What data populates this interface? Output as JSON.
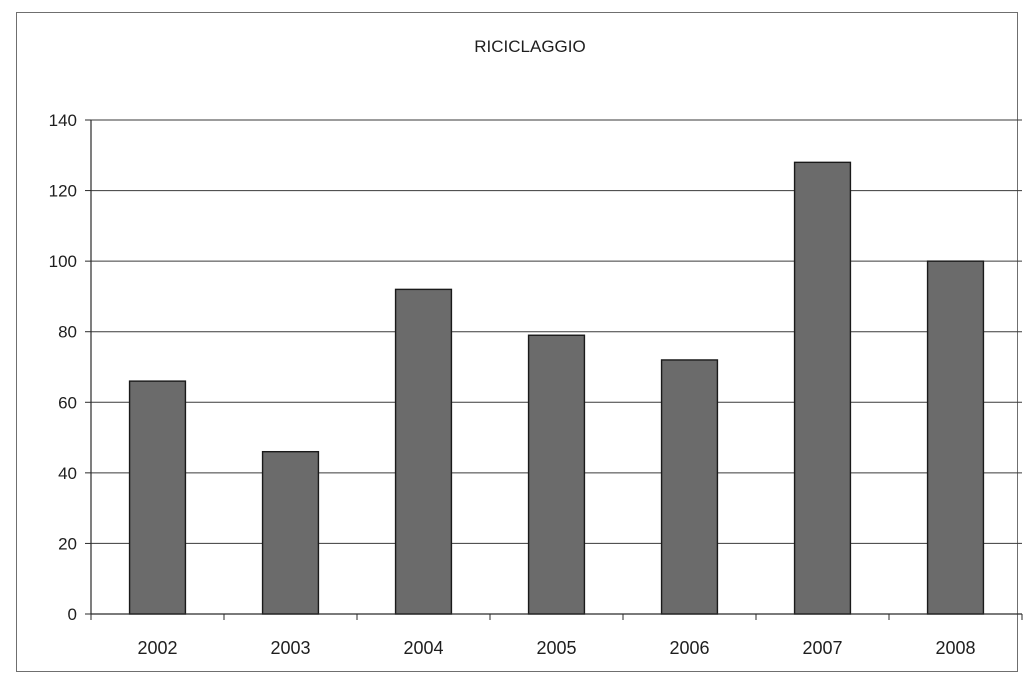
{
  "chart_data": {
    "type": "bar",
    "title": "RICICLAGGIO",
    "xlabel": "",
    "ylabel": "",
    "categories": [
      "2002",
      "2003",
      "2004",
      "2005",
      "2006",
      "2007",
      "2008"
    ],
    "values": [
      66,
      46,
      92,
      79,
      72,
      128,
      100
    ],
    "ylim": [
      0,
      140
    ],
    "yticks": [
      0,
      20,
      40,
      60,
      80,
      100,
      120,
      140
    ],
    "ytick_labels": [
      "0",
      "20",
      "40",
      "60",
      "80",
      "100",
      "120",
      "140"
    ],
    "grid": true,
    "legend": "none",
    "bar_color": "#6b6b6b",
    "bar_outline": "#1a1a1a"
  }
}
